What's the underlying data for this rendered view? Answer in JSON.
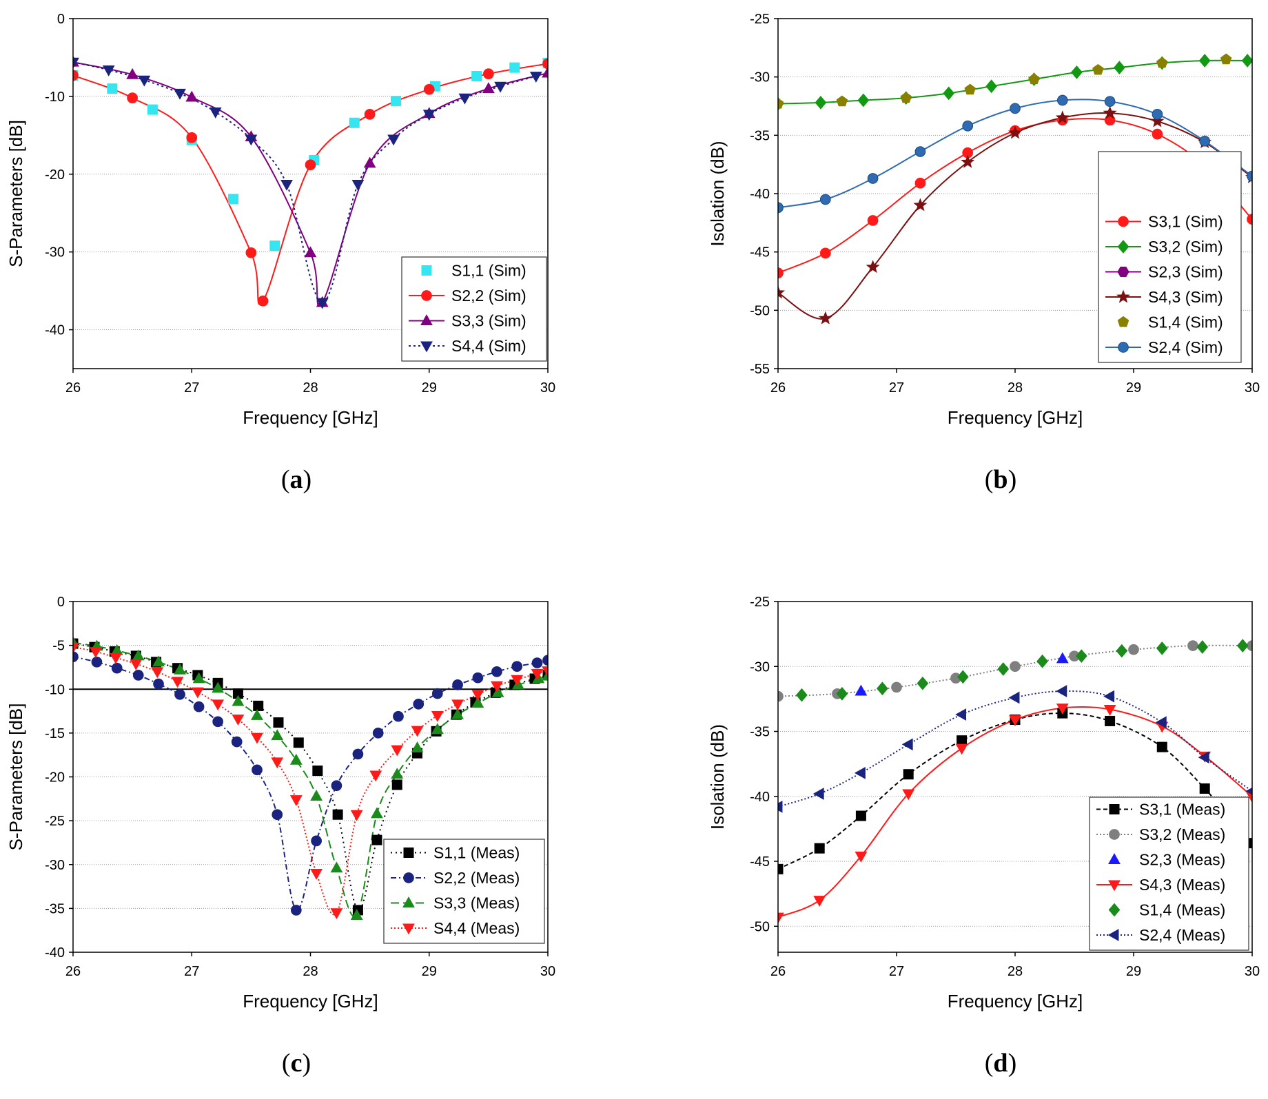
{
  "figure": {
    "captions": [
      "(a)",
      "(b)",
      "(c)",
      "(d)"
    ]
  },
  "chart_data": [
    {
      "panel": "a",
      "type": "line",
      "xlabel": "Frequency [GHz]",
      "ylabel": "S-Parameters [dB]",
      "xlim": [
        26,
        30
      ],
      "ylim": [
        -45,
        0
      ],
      "xticks": [
        26,
        27,
        28,
        29,
        30
      ],
      "yticks": [
        0,
        -10,
        -20,
        -30,
        -40
      ],
      "grid": true,
      "legend_position": "bottom-right",
      "series": [
        {
          "name": "S1,1 (Sim)",
          "color": "#33e6ef",
          "marker": "square",
          "dash": "",
          "line": false,
          "x": [
            26.0,
            26.33,
            26.67,
            27.0,
            27.35,
            27.7,
            28.03,
            28.37,
            28.72,
            29.05,
            29.4,
            29.72,
            30.0
          ],
          "y": [
            -7.3,
            -9.0,
            -11.7,
            -15.6,
            -23.2,
            -29.2,
            -18.2,
            -13.4,
            -10.6,
            -8.7,
            -7.4,
            -6.3,
            -5.7
          ]
        },
        {
          "name": "S2,2 (Sim)",
          "color": "#ff1a1a",
          "marker": "circle",
          "dash": "",
          "line": true,
          "x": [
            26.0,
            26.5,
            27.0,
            27.5,
            27.6,
            28.0,
            28.5,
            29.0,
            29.5,
            30.0
          ],
          "y": [
            -7.3,
            -10.2,
            -15.3,
            -30.1,
            -36.3,
            -18.8,
            -12.3,
            -9.1,
            -7.1,
            -5.8
          ]
        },
        {
          "name": "S3,3 (Sim)",
          "color": "#800080",
          "marker": "triangle",
          "dash": "",
          "line": true,
          "x": [
            26.0,
            26.5,
            27.0,
            27.5,
            28.0,
            28.1,
            28.5,
            29.0,
            29.5,
            30.0
          ],
          "y": [
            -5.6,
            -7.2,
            -10.1,
            -15.2,
            -30.1,
            -36.5,
            -18.6,
            -12.2,
            -9.0,
            -7.0
          ]
        },
        {
          "name": "S4,4 (Sim)",
          "color": "#1a237e",
          "marker": "triangle-down",
          "dash": "3,4",
          "line": true,
          "x": [
            26.0,
            26.3,
            26.6,
            26.9,
            27.2,
            27.5,
            27.8,
            28.1,
            28.4,
            28.7,
            29.0,
            29.3,
            29.6,
            29.9
          ],
          "y": [
            -5.6,
            -6.6,
            -7.9,
            -9.6,
            -12.0,
            -15.5,
            -21.3,
            -36.5,
            -21.3,
            -15.5,
            -12.3,
            -10.2,
            -8.7,
            -7.4
          ]
        }
      ]
    },
    {
      "panel": "b",
      "type": "line",
      "xlabel": "Frequency [GHz]",
      "ylabel": "Isolation (dB)",
      "xlim": [
        26,
        30
      ],
      "ylim": [
        -55,
        -25
      ],
      "xticks": [
        26,
        27,
        28,
        29,
        30
      ],
      "yticks": [
        -25,
        -30,
        -35,
        -40,
        -45,
        -50,
        -55
      ],
      "grid": true,
      "legend_position": "right",
      "series": [
        {
          "name": "S3,1 (Sim)",
          "color": "#ff1a1a",
          "marker": "circle",
          "dash": "",
          "line": true,
          "x": [
            26.0,
            26.4,
            26.8,
            27.2,
            27.6,
            28.0,
            28.4,
            28.8,
            29.2,
            29.6,
            30.0
          ],
          "y": [
            -46.8,
            -45.1,
            -42.3,
            -39.1,
            -36.5,
            -34.6,
            -33.7,
            -33.7,
            -34.9,
            -37.6,
            -42.2
          ]
        },
        {
          "name": "S3,2 (Sim)",
          "color": "#119911",
          "marker": "diamond",
          "dash": "",
          "line": true,
          "x": [
            26.0,
            26.36,
            26.72,
            27.08,
            27.44,
            27.8,
            28.16,
            28.52,
            28.88,
            29.24,
            29.6,
            29.96
          ],
          "y": [
            -32.3,
            -32.2,
            -32.0,
            -31.8,
            -31.4,
            -30.8,
            -30.2,
            -29.6,
            -29.2,
            -28.8,
            -28.6,
            -28.6
          ]
        },
        {
          "name": "S2,3 (Sim)",
          "color": "#800080",
          "marker": "hexagon",
          "dash": "",
          "line": true,
          "x": [],
          "y": []
        },
        {
          "name": "S4,3 (Sim)",
          "color": "#7a1010",
          "marker": "star",
          "dash": "",
          "line": true,
          "x": [
            26.0,
            26.4,
            26.8,
            27.2,
            27.6,
            28.0,
            28.4,
            28.8,
            29.2,
            29.6,
            30.0
          ],
          "y": [
            -48.5,
            -50.7,
            -46.3,
            -41.0,
            -37.3,
            -34.8,
            -33.5,
            -33.1,
            -33.8,
            -35.6,
            -38.6
          ]
        },
        {
          "name": "S1,4 (Sim)",
          "color": "#8a8000",
          "marker": "pentagon",
          "dash": "",
          "line": false,
          "x": [
            26.0,
            26.54,
            27.08,
            27.62,
            28.16,
            28.7,
            29.24,
            29.78
          ],
          "y": [
            -32.3,
            -32.1,
            -31.8,
            -31.1,
            -30.2,
            -29.4,
            -28.8,
            -28.5
          ]
        },
        {
          "name": "S2,4 (Sim)",
          "color": "#2f6bb0",
          "marker": "sphere",
          "dash": "",
          "line": true,
          "x": [
            26.0,
            26.4,
            26.8,
            27.2,
            27.6,
            28.0,
            28.4,
            28.8,
            29.2,
            29.6,
            30.0
          ],
          "y": [
            -41.2,
            -40.5,
            -38.7,
            -36.4,
            -34.2,
            -32.7,
            -32.0,
            -32.1,
            -33.2,
            -35.5,
            -38.5
          ]
        }
      ]
    },
    {
      "panel": "c",
      "type": "line",
      "xlabel": "Frequency [GHz]",
      "ylabel": "S-Parameters [dB]",
      "xlim": [
        26,
        30
      ],
      "ylim": [
        -40,
        0
      ],
      "xticks": [
        26,
        27,
        28,
        29,
        30
      ],
      "yticks": [
        0,
        -5,
        -10,
        -15,
        -20,
        -25,
        -30,
        -35,
        -40
      ],
      "grid": true,
      "reference_line": -10,
      "legend_position": "bottom-right",
      "series": [
        {
          "name": "S1,1 (Meas)",
          "color": "#000000",
          "marker": "square",
          "dash": "2,5",
          "line": true,
          "x": [
            26.0,
            26.18,
            26.35,
            26.53,
            26.7,
            26.88,
            27.05,
            27.22,
            27.39,
            27.56,
            27.73,
            27.9,
            28.06,
            28.23,
            28.4,
            28.56,
            28.73,
            28.9,
            29.06,
            29.23,
            29.39,
            29.56,
            29.72,
            29.89,
            30.0
          ],
          "y": [
            -4.8,
            -5.2,
            -5.7,
            -6.2,
            -6.9,
            -7.6,
            -8.4,
            -9.3,
            -10.5,
            -11.9,
            -13.8,
            -16.1,
            -19.3,
            -24.3,
            -35.2,
            -27.2,
            -20.9,
            -17.3,
            -14.8,
            -12.9,
            -11.5,
            -10.4,
            -9.5,
            -8.8,
            -8.4
          ]
        },
        {
          "name": "S2,2 (Meas)",
          "color": "#1a237e",
          "marker": "circle",
          "dash": "8,4,2,4",
          "line": true,
          "x": [
            26.0,
            26.2,
            26.37,
            26.55,
            26.72,
            26.9,
            27.06,
            27.22,
            27.38,
            27.55,
            27.72,
            27.88,
            28.05,
            28.22,
            28.4,
            28.57,
            28.74,
            28.91,
            29.07,
            29.24,
            29.41,
            29.57,
            29.74,
            29.91,
            30.0
          ],
          "y": [
            -6.3,
            -6.9,
            -7.6,
            -8.4,
            -9.4,
            -10.6,
            -12.0,
            -13.7,
            -16.0,
            -19.2,
            -24.3,
            -35.2,
            -27.3,
            -21.0,
            -17.4,
            -15.0,
            -13.1,
            -11.7,
            -10.5,
            -9.5,
            -8.7,
            -8.0,
            -7.4,
            -7.0,
            -6.7
          ]
        },
        {
          "name": "S3,3 (Meas)",
          "color": "#1a8a1a",
          "marker": "triangle",
          "dash": "12,6",
          "line": true,
          "x": [
            26.0,
            26.2,
            26.37,
            26.55,
            26.72,
            26.9,
            27.06,
            27.22,
            27.39,
            27.55,
            27.72,
            27.88,
            28.05,
            28.22,
            28.39,
            28.56,
            28.73,
            28.9,
            29.07,
            29.24,
            29.41,
            29.58,
            29.75,
            29.92,
            30.0
          ],
          "y": [
            -4.7,
            -5.1,
            -5.6,
            -6.2,
            -6.9,
            -7.8,
            -8.8,
            -9.9,
            -11.4,
            -13.0,
            -15.3,
            -18.1,
            -22.2,
            -30.4,
            -35.8,
            -24.2,
            -19.7,
            -16.7,
            -14.6,
            -12.9,
            -11.6,
            -10.4,
            -9.5,
            -8.8,
            -8.5
          ]
        },
        {
          "name": "S4,4 (Meas)",
          "color": "#ff1a1a",
          "marker": "triangle-down",
          "dash": "2,3",
          "line": true,
          "x": [
            26.0,
            26.19,
            26.36,
            26.53,
            26.71,
            26.88,
            27.05,
            27.22,
            27.39,
            27.55,
            27.72,
            27.88,
            28.05,
            28.22,
            28.39,
            28.55,
            28.73,
            28.9,
            29.07,
            29.24,
            29.41,
            29.57,
            29.74,
            29.91,
            30.0
          ],
          "y": [
            -5.2,
            -5.7,
            -6.4,
            -7.1,
            -8.0,
            -9.1,
            -10.3,
            -11.7,
            -13.4,
            -15.5,
            -18.3,
            -22.6,
            -31.0,
            -35.5,
            -24.3,
            -19.8,
            -16.9,
            -14.7,
            -13.0,
            -11.7,
            -10.6,
            -9.6,
            -8.9,
            -8.2,
            -7.9
          ]
        }
      ]
    },
    {
      "panel": "d",
      "type": "line",
      "xlabel": "Frequency [GHz]",
      "ylabel": "Isolation (dB)",
      "xlim": [
        26,
        30
      ],
      "ylim": [
        -52,
        -25
      ],
      "xticks": [
        26,
        27,
        28,
        29,
        30
      ],
      "yticks": [
        -25,
        -30,
        -35,
        -40,
        -45,
        -50
      ],
      "grid": true,
      "legend_position": "bottom-right",
      "series": [
        {
          "name": "S3,1 (Meas)",
          "color": "#000000",
          "marker": "square",
          "dash": "6,4",
          "line": true,
          "x": [
            26.0,
            26.35,
            26.7,
            27.1,
            27.55,
            28.0,
            28.4,
            28.8,
            29.24,
            29.6,
            30.0
          ],
          "y": [
            -45.6,
            -44.0,
            -41.5,
            -38.3,
            -35.7,
            -34.1,
            -33.6,
            -34.2,
            -36.2,
            -39.4,
            -43.6
          ]
        },
        {
          "name": "S3,2 (Meas)",
          "color": "#7f7f7f",
          "marker": "circle",
          "dash": "2,3",
          "line": true,
          "x": [
            26.0,
            26.5,
            27.0,
            27.5,
            28.0,
            28.5,
            29.0,
            29.5,
            30.0
          ],
          "y": [
            -32.3,
            -32.1,
            -31.6,
            -30.9,
            -30.0,
            -29.2,
            -28.7,
            -28.4,
            -28.4
          ]
        },
        {
          "name": "S2,3 (Meas)",
          "color": "#1a1aff",
          "marker": "triangle",
          "dash": "",
          "line": false,
          "x": [
            26.7,
            28.4
          ],
          "y": [
            -31.9,
            -29.4
          ]
        },
        {
          "name": "S4,3 (Meas)",
          "color": "#ff1a1a",
          "marker": "triangle-down",
          "dash": "",
          "line": true,
          "x": [
            26.0,
            26.35,
            26.7,
            27.1,
            27.55,
            28.0,
            28.4,
            28.8,
            29.24,
            29.6,
            30.0
          ],
          "y": [
            -49.3,
            -48.0,
            -44.6,
            -39.8,
            -36.3,
            -34.1,
            -33.2,
            -33.3,
            -34.6,
            -36.9,
            -40.0
          ]
        },
        {
          "name": "S1,4 (Meas)",
          "color": "#1a8a1a",
          "marker": "diamond",
          "dash": "",
          "line": false,
          "x": [
            26.2,
            26.54,
            26.88,
            27.22,
            27.56,
            27.9,
            28.23,
            28.56,
            28.9,
            29.24,
            29.58,
            29.92
          ],
          "y": [
            -32.2,
            -32.1,
            -31.7,
            -31.3,
            -30.8,
            -30.2,
            -29.6,
            -29.2,
            -28.8,
            -28.6,
            -28.5,
            -28.4
          ]
        },
        {
          "name": "S2,4 (Meas)",
          "color": "#1a237e",
          "marker": "triangle-left",
          "dash": "2,3",
          "line": true,
          "x": [
            26.0,
            26.35,
            26.7,
            27.1,
            27.55,
            28.0,
            28.4,
            28.8,
            29.24,
            29.6,
            30.0
          ],
          "y": [
            -40.8,
            -39.8,
            -38.2,
            -36.0,
            -33.7,
            -32.4,
            -31.9,
            -32.3,
            -34.3,
            -37.0,
            -39.6
          ]
        }
      ]
    }
  ]
}
